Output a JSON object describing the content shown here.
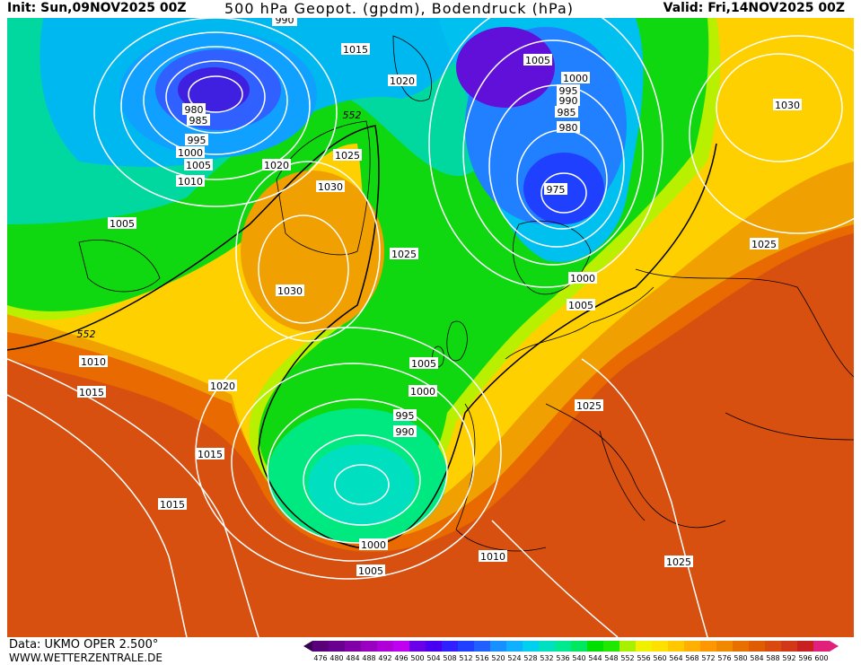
{
  "header": {
    "init": "Init: Sun,09NOV2025 00Z",
    "title": "500 hPa Geopot. (gpdm), Bodendruck (hPa)",
    "valid": "Valid: Fri,14NOV2025 00Z"
  },
  "footer": {
    "data_source": "Data: UKMO OPER 2.500°",
    "website": "WWW.WETTERZENTRALE.DE"
  },
  "scale": {
    "values": [
      "476",
      "480",
      "484",
      "488",
      "492",
      "496",
      "500",
      "504",
      "508",
      "512",
      "516",
      "520",
      "524",
      "528",
      "532",
      "536",
      "540",
      "544",
      "548",
      "552",
      "556",
      "560",
      "564",
      "568",
      "572",
      "576",
      "580",
      "584",
      "588",
      "592",
      "596",
      "600"
    ],
    "colors": [
      "#5a007a",
      "#6a0090",
      "#8000a8",
      "#9a00c0",
      "#b000d8",
      "#c000f0",
      "#6a00e8",
      "#4a00f0",
      "#3020ff",
      "#2040ff",
      "#2060ff",
      "#1890ff",
      "#10b0ff",
      "#00d0f0",
      "#00e0c0",
      "#00e890",
      "#00e860",
      "#00e000",
      "#20e800",
      "#a8f000",
      "#f0f000",
      "#ffe000",
      "#ffc800",
      "#ffb000",
      "#ff9800",
      "#f08800",
      "#e87000",
      "#e05c00",
      "#d84a10",
      "#d03818",
      "#c82020",
      "#e0207a"
    ]
  },
  "map": {
    "contour_label_552": "552",
    "pressure_labels": [
      "990",
      "1015",
      "1020",
      "1005",
      "1000",
      "995",
      "985",
      "980",
      "1000",
      "1005",
      "1010",
      "1020",
      "1030",
      "1025",
      "1025",
      "1030",
      "1005",
      "1000",
      "1005",
      "995",
      "990",
      "985",
      "980",
      "975",
      "1030",
      "1025",
      "1000",
      "1005",
      "552",
      "1010",
      "1015",
      "1020",
      "1015",
      "1015",
      "1005",
      "1000",
      "995",
      "990",
      "1025",
      "1000",
      "1005",
      "1010",
      "1025"
    ]
  }
}
